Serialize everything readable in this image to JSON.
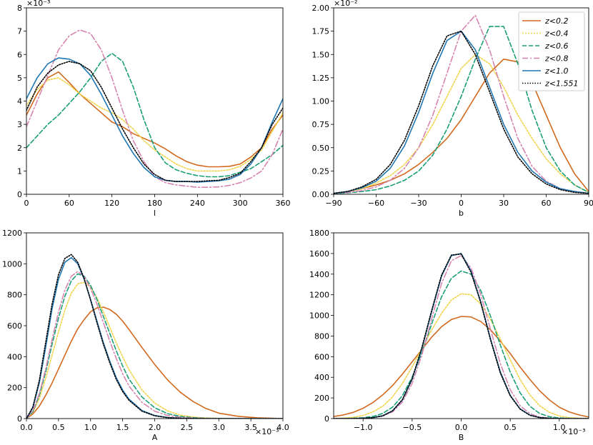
{
  "colors": {
    "z02": "#d2691e",
    "z04": "#f0d44a",
    "z06": "#1b9e77",
    "z08": "#d685b0",
    "z10": "#1f77b4",
    "z1551": "#000000"
  },
  "legend": {
    "placement": "top-right of panel b",
    "entries": [
      "z<0.2",
      "z<0.4",
      "z<0.6",
      "z<0.8",
      "z<1.0",
      "z<1.551"
    ]
  },
  "chart_data": [
    {
      "id": "l",
      "type": "line",
      "xlabel": "l",
      "ylabel": "",
      "xlim": [
        0,
        360
      ],
      "ylim": [
        0,
        8
      ],
      "xticks": [
        0,
        60,
        120,
        180,
        240,
        300,
        360
      ],
      "xtick_labels": [
        "0",
        "60",
        "120",
        "180",
        "240",
        "300",
        "360"
      ],
      "yticks": [
        0,
        1,
        2,
        3,
        4,
        5,
        6,
        7,
        8
      ],
      "ytick_labels": [
        "0",
        "1",
        "2",
        "3",
        "4",
        "5",
        "6",
        "7",
        "8"
      ],
      "offset_text": "×10⁻³",
      "x": [
        0,
        15,
        30,
        45,
        60,
        75,
        90,
        105,
        120,
        135,
        150,
        165,
        180,
        195,
        210,
        225,
        240,
        255,
        270,
        285,
        300,
        315,
        330,
        345,
        360
      ],
      "series": [
        {
          "name": "z<0.2",
          "key": "z02",
          "dash": "",
          "values": [
            3.4,
            4.3,
            5.0,
            5.25,
            4.8,
            4.3,
            3.9,
            3.5,
            3.1,
            2.9,
            2.6,
            2.4,
            2.2,
            1.95,
            1.65,
            1.4,
            1.25,
            1.18,
            1.18,
            1.2,
            1.3,
            1.6,
            2.0,
            2.8,
            3.4
          ]
        },
        {
          "name": "z<0.4",
          "key": "z04",
          "dash": "2,2",
          "values": [
            3.8,
            4.5,
            4.9,
            5.0,
            4.7,
            4.3,
            4.0,
            3.7,
            3.5,
            3.2,
            2.8,
            2.3,
            1.9,
            1.6,
            1.3,
            1.1,
            1.0,
            1.0,
            1.0,
            1.05,
            1.2,
            1.5,
            1.9,
            2.7,
            3.5
          ]
        },
        {
          "name": "z<0.6",
          "key": "z06",
          "dash": "6,3",
          "values": [
            2.0,
            2.5,
            3.0,
            3.4,
            3.9,
            4.4,
            5.0,
            5.7,
            6.05,
            5.7,
            4.6,
            3.2,
            2.0,
            1.35,
            1.05,
            0.9,
            0.8,
            0.75,
            0.75,
            0.8,
            0.95,
            1.1,
            1.4,
            1.7,
            2.1
          ]
        },
        {
          "name": "z<0.8",
          "key": "z08",
          "dash": "8,3,2,3",
          "values": [
            2.9,
            4.0,
            5.1,
            6.2,
            6.8,
            7.05,
            6.9,
            6.2,
            5.0,
            3.6,
            2.3,
            1.4,
            0.75,
            0.5,
            0.4,
            0.35,
            0.3,
            0.3,
            0.32,
            0.38,
            0.5,
            0.7,
            1.0,
            1.7,
            2.8
          ]
        },
        {
          "name": "z<1.0",
          "key": "z10",
          "dash": "",
          "values": [
            4.1,
            5.0,
            5.6,
            5.85,
            5.8,
            5.6,
            5.1,
            4.3,
            3.4,
            2.5,
            1.75,
            1.15,
            0.75,
            0.6,
            0.55,
            0.55,
            0.52,
            0.55,
            0.58,
            0.65,
            0.85,
            1.3,
            2.0,
            3.1,
            4.1
          ]
        },
        {
          "name": "z<1.551",
          "key": "z1551",
          "dash": "1.5,2",
          "values": [
            3.6,
            4.6,
            5.2,
            5.55,
            5.7,
            5.6,
            5.3,
            4.6,
            3.7,
            2.8,
            2.0,
            1.3,
            0.85,
            0.6,
            0.55,
            0.55,
            0.55,
            0.58,
            0.6,
            0.72,
            0.9,
            1.4,
            2.0,
            3.0,
            3.7
          ]
        }
      ]
    },
    {
      "id": "b",
      "type": "line",
      "xlabel": "b",
      "ylabel": "",
      "xlim": [
        -90,
        90
      ],
      "ylim": [
        0,
        2.0
      ],
      "xticks": [
        -90,
        -60,
        -30,
        0,
        30,
        60,
        90
      ],
      "xtick_labels": [
        "−90",
        "−60",
        "−30",
        "0",
        "30",
        "60",
        "90"
      ],
      "yticks": [
        0,
        0.25,
        0.5,
        0.75,
        1.0,
        1.25,
        1.5,
        1.75,
        2.0
      ],
      "ytick_labels": [
        "0.00",
        "0.25",
        "0.50",
        "0.75",
        "1.00",
        "1.25",
        "1.50",
        "1.75",
        "2.00"
      ],
      "offset_text": "×10⁻²",
      "x": [
        -90,
        -80,
        -70,
        -60,
        -50,
        -40,
        -30,
        -20,
        -10,
        0,
        10,
        20,
        30,
        40,
        50,
        60,
        70,
        80,
        90
      ],
      "series": [
        {
          "name": "z<0.2",
          "key": "z02",
          "dash": "",
          "values": [
            0.01,
            0.03,
            0.06,
            0.1,
            0.15,
            0.22,
            0.32,
            0.45,
            0.6,
            0.8,
            1.05,
            1.3,
            1.45,
            1.42,
            1.2,
            0.85,
            0.5,
            0.22,
            0.03
          ]
        },
        {
          "name": "z<0.4",
          "key": "z04",
          "dash": "2,2",
          "values": [
            0.01,
            0.03,
            0.06,
            0.12,
            0.2,
            0.32,
            0.5,
            0.75,
            1.05,
            1.35,
            1.5,
            1.4,
            1.15,
            0.85,
            0.6,
            0.38,
            0.22,
            0.1,
            0.02
          ]
        },
        {
          "name": "z<0.6",
          "key": "z06",
          "dash": "6,3",
          "values": [
            0.005,
            0.015,
            0.03,
            0.05,
            0.09,
            0.15,
            0.25,
            0.42,
            0.7,
            1.05,
            1.45,
            1.8,
            1.8,
            1.4,
            0.9,
            0.5,
            0.25,
            0.1,
            0.02
          ]
        },
        {
          "name": "z<0.8",
          "key": "z08",
          "dash": "8,3,2,3",
          "values": [
            0.01,
            0.02,
            0.04,
            0.08,
            0.15,
            0.28,
            0.5,
            0.85,
            1.3,
            1.75,
            1.92,
            1.55,
            1.05,
            0.6,
            0.3,
            0.14,
            0.06,
            0.03,
            0.01
          ]
        },
        {
          "name": "z<1.0",
          "key": "z10",
          "dash": "",
          "values": [
            0.01,
            0.03,
            0.07,
            0.14,
            0.28,
            0.52,
            0.88,
            1.3,
            1.65,
            1.75,
            1.55,
            1.15,
            0.75,
            0.45,
            0.25,
            0.13,
            0.06,
            0.03,
            0.01
          ]
        },
        {
          "name": "z<1.551",
          "key": "z1551",
          "dash": "1.5,2",
          "values": [
            0.01,
            0.03,
            0.08,
            0.16,
            0.32,
            0.58,
            0.95,
            1.38,
            1.7,
            1.75,
            1.5,
            1.1,
            0.7,
            0.4,
            0.22,
            0.11,
            0.05,
            0.02,
            0.01
          ]
        }
      ]
    },
    {
      "id": "A",
      "type": "line",
      "xlabel": "A",
      "ylabel": "",
      "xlim": [
        0,
        4.0
      ],
      "ylim": [
        0,
        1200
      ],
      "xticks": [
        0,
        0.5,
        1.0,
        1.5,
        2.0,
        2.5,
        3.0,
        3.5,
        4.0
      ],
      "xtick_labels": [
        "0.0",
        "0.5",
        "1.0",
        "1.5",
        "2.0",
        "2.5",
        "3.0",
        "3.5",
        "4.0"
      ],
      "yticks": [
        0,
        200,
        400,
        600,
        800,
        1000,
        1200
      ],
      "ytick_labels": [
        "0",
        "200",
        "400",
        "600",
        "800",
        "1000",
        "1200"
      ],
      "offset_text": "×10⁻³",
      "x": [
        0,
        0.1,
        0.2,
        0.3,
        0.4,
        0.5,
        0.6,
        0.7,
        0.8,
        0.9,
        1.0,
        1.1,
        1.2,
        1.3,
        1.4,
        1.5,
        1.6,
        1.8,
        2.0,
        2.2,
        2.4,
        2.6,
        2.8,
        3.0,
        3.3,
        3.6,
        4.0
      ],
      "series": [
        {
          "name": "z<0.2",
          "key": "z02",
          "dash": "",
          "values": [
            0,
            30,
            80,
            150,
            230,
            320,
            410,
            500,
            580,
            640,
            690,
            715,
            720,
            705,
            675,
            630,
            575,
            460,
            350,
            250,
            170,
            110,
            65,
            35,
            15,
            5,
            0
          ]
        },
        {
          "name": "z<0.4",
          "key": "z04",
          "dash": "2,2",
          "values": [
            0,
            40,
            130,
            260,
            410,
            560,
            700,
            810,
            870,
            880,
            850,
            780,
            690,
            590,
            490,
            400,
            315,
            185,
            100,
            50,
            22,
            10,
            4,
            2,
            0,
            0,
            0
          ]
        },
        {
          "name": "z<0.6",
          "key": "z06",
          "dash": "6,3",
          "values": [
            0,
            45,
            150,
            300,
            480,
            650,
            790,
            890,
            935,
            920,
            860,
            770,
            660,
            550,
            440,
            340,
            255,
            140,
            70,
            32,
            14,
            6,
            2,
            1,
            0,
            0,
            0
          ]
        },
        {
          "name": "z<0.8",
          "key": "z08",
          "dash": "8,3,2,3",
          "values": [
            0,
            50,
            160,
            320,
            510,
            690,
            830,
            920,
            950,
            920,
            840,
            740,
            620,
            500,
            390,
            290,
            210,
            105,
            48,
            20,
            8,
            3,
            1,
            0,
            0,
            0,
            0
          ]
        },
        {
          "name": "z<1.0",
          "key": "z10",
          "dash": "",
          "values": [
            0,
            70,
            230,
            460,
            710,
            900,
            1010,
            1040,
            1000,
            900,
            770,
            630,
            490,
            370,
            265,
            185,
            125,
            52,
            20,
            7,
            2,
            1,
            0,
            0,
            0,
            0,
            0
          ]
        },
        {
          "name": "z<1.551",
          "key": "z1551",
          "dash": "1.5,2",
          "values": [
            0,
            75,
            245,
            490,
            740,
            930,
            1035,
            1060,
            1010,
            905,
            765,
            620,
            480,
            360,
            255,
            175,
            118,
            48,
            18,
            6,
            2,
            1,
            0,
            0,
            0,
            0,
            0
          ]
        }
      ]
    },
    {
      "id": "B",
      "type": "line",
      "xlabel": "B",
      "ylabel": "",
      "xlim": [
        -1.3,
        1.3
      ],
      "ylim": [
        0,
        1800
      ],
      "xticks": [
        -1.0,
        -0.5,
        0.0,
        0.5,
        1.0
      ],
      "xtick_labels": [
        "−1.0",
        "−0.5",
        "0.0",
        "0.5",
        "1.0"
      ],
      "yticks": [
        0,
        200,
        400,
        600,
        800,
        1000,
        1200,
        1400,
        1600,
        1800
      ],
      "ytick_labels": [
        "0",
        "200",
        "400",
        "600",
        "800",
        "1000",
        "1200",
        "1400",
        "1600",
        "1800"
      ],
      "offset_text": "×10⁻³",
      "x": [
        -1.3,
        -1.2,
        -1.1,
        -1.0,
        -0.9,
        -0.8,
        -0.7,
        -0.6,
        -0.5,
        -0.4,
        -0.3,
        -0.2,
        -0.1,
        0.0,
        0.1,
        0.2,
        0.3,
        0.4,
        0.5,
        0.6,
        0.7,
        0.8,
        0.9,
        1.0,
        1.1,
        1.2,
        1.3
      ],
      "series": [
        {
          "name": "z<0.2",
          "key": "z02",
          "dash": "",
          "values": [
            20,
            35,
            60,
            100,
            155,
            230,
            320,
            430,
            550,
            670,
            790,
            890,
            960,
            990,
            985,
            940,
            860,
            750,
            630,
            500,
            380,
            270,
            180,
            110,
            65,
            35,
            15
          ]
        },
        {
          "name": "z<0.4",
          "key": "z04",
          "dash": "2,2",
          "values": [
            2,
            5,
            12,
            30,
            65,
            120,
            210,
            340,
            500,
            680,
            860,
            1020,
            1150,
            1210,
            1200,
            1110,
            960,
            770,
            570,
            380,
            230,
            125,
            60,
            25,
            10,
            4,
            1
          ]
        },
        {
          "name": "z<0.6",
          "key": "z06",
          "dash": "6,3",
          "values": [
            0,
            1,
            3,
            8,
            20,
            50,
            110,
            220,
            400,
            640,
            920,
            1180,
            1360,
            1430,
            1400,
            1240,
            990,
            710,
            450,
            250,
            120,
            50,
            18,
            6,
            2,
            0,
            0
          ]
        },
        {
          "name": "z<0.8",
          "key": "z08",
          "dash": "8,3,2,3",
          "values": [
            0,
            0,
            1,
            3,
            8,
            25,
            65,
            160,
            340,
            620,
            970,
            1310,
            1530,
            1580,
            1460,
            1200,
            860,
            530,
            280,
            125,
            48,
            15,
            4,
            1,
            0,
            0,
            0
          ]
        },
        {
          "name": "z<1.0",
          "key": "z10",
          "dash": "",
          "values": [
            0,
            0,
            1,
            3,
            9,
            27,
            75,
            180,
            380,
            680,
            1040,
            1380,
            1580,
            1600,
            1430,
            1130,
            770,
            450,
            225,
            95,
            34,
            10,
            3,
            1,
            0,
            0,
            0
          ]
        },
        {
          "name": "z<1.551",
          "key": "z1551",
          "dash": "1.5,2",
          "values": [
            0,
            0,
            1,
            3,
            9,
            27,
            75,
            182,
            385,
            690,
            1050,
            1390,
            1585,
            1595,
            1420,
            1120,
            760,
            440,
            220,
            92,
            32,
            10,
            3,
            1,
            0,
            0,
            0
          ]
        }
      ]
    }
  ]
}
